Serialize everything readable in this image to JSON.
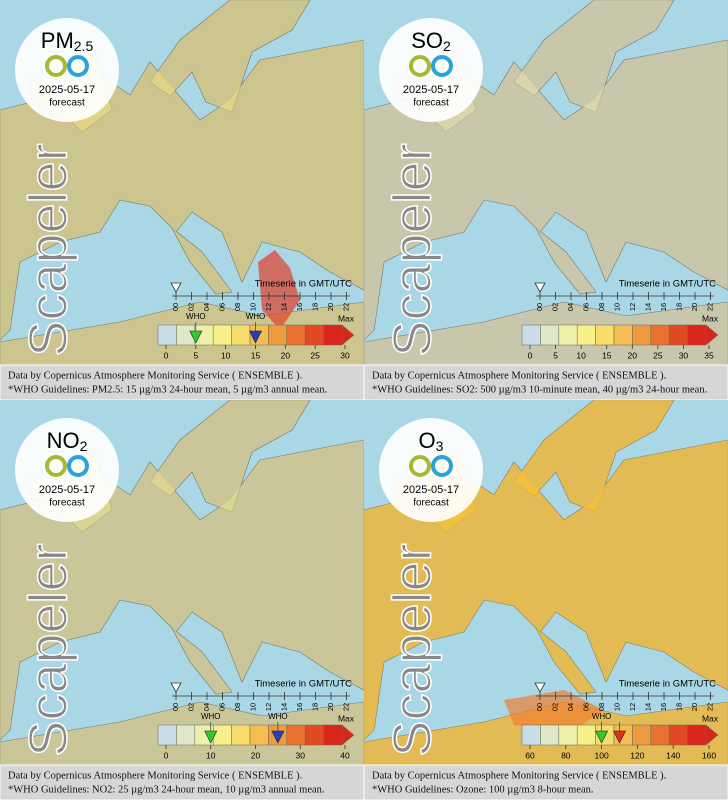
{
  "watermark": "Scapeler",
  "date": "2025-05-17",
  "label": "forecast",
  "timeseries_title": "Timeserie in GMT/UTC",
  "hours": [
    "00",
    "02",
    "04",
    "06",
    "08",
    "10",
    "12",
    "14",
    "16",
    "18",
    "20",
    "22"
  ],
  "max_label": "Max",
  "source_line": "Data by Copernicus Atmosphere Monitoring Service ( ENSEMBLE ).",
  "panels": [
    {
      "pollutant": {
        "main": "PM",
        "sub": "2.5"
      },
      "scale": [
        0,
        5,
        10,
        15,
        20,
        25,
        30
      ],
      "markers": [
        {
          "value": 5,
          "color": "#2ecc2e",
          "label": "WHO"
        },
        {
          "value": 15,
          "color": "#2040c0",
          "label": "WHO"
        }
      ],
      "guideline": "*WHO Guidelines: PM2.5: 15 µg/m3 24-hour mean, 5 µg/m3 annual mean."
    },
    {
      "pollutant": {
        "main": "SO",
        "sub": "2"
      },
      "scale": [
        0,
        5,
        10,
        15,
        20,
        25,
        30,
        35
      ],
      "markers": [],
      "guideline": "*WHO Guidelines: SO2: 500 µg/m3 10-minute mean, 40 µg/m3 24-hour mean."
    },
    {
      "pollutant": {
        "main": "NO",
        "sub": "2"
      },
      "scale": [
        0,
        10,
        20,
        30,
        40
      ],
      "markers": [
        {
          "value": 10,
          "color": "#2ecc2e",
          "label": "WHO"
        },
        {
          "value": 25,
          "color": "#2040c0",
          "label": "WHO"
        }
      ],
      "guideline": "*WHO Guidelines: NO2: 25 µg/m3 24-hour mean, 10 µg/m3 annual mean."
    },
    {
      "pollutant": {
        "main": "O",
        "sub": "3"
      },
      "scale": [
        60,
        80,
        100,
        120,
        140,
        160
      ],
      "markers": [
        {
          "value": 100,
          "color": "#2ecc2e",
          "label": "WHO"
        },
        {
          "value": 110,
          "color": "#e03020"
        }
      ],
      "guideline": "*WHO Guidelines: Ozone: 100 µg/m3 8-hour mean."
    }
  ]
}
